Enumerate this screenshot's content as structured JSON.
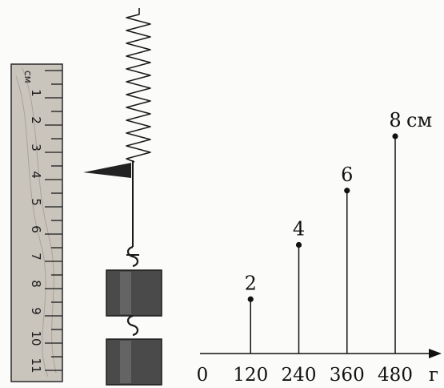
{
  "ruler": {
    "unit": "см",
    "numbers": [
      "1",
      "2",
      "3",
      "4",
      "5",
      "6",
      "7",
      "8",
      "9",
      "10",
      "11"
    ]
  },
  "colors": {
    "ruler_fill": "#c9c4bc",
    "weight_fill": "#4a4a4a",
    "ink": "#111111"
  },
  "chart_data": {
    "type": "scatter",
    "x_unit": "г",
    "y_unit": "см",
    "x_ticks": [
      "0",
      "120",
      "240",
      "360",
      "480"
    ],
    "points": [
      {
        "x": 120,
        "y": 2,
        "label": "2"
      },
      {
        "x": 240,
        "y": 4,
        "label": "4"
      },
      {
        "x": 360,
        "y": 6,
        "label": "6"
      },
      {
        "x": 480,
        "y": 8,
        "label": "8"
      }
    ],
    "xlim": [
      0,
      480
    ],
    "ylim": [
      0,
      8
    ]
  }
}
